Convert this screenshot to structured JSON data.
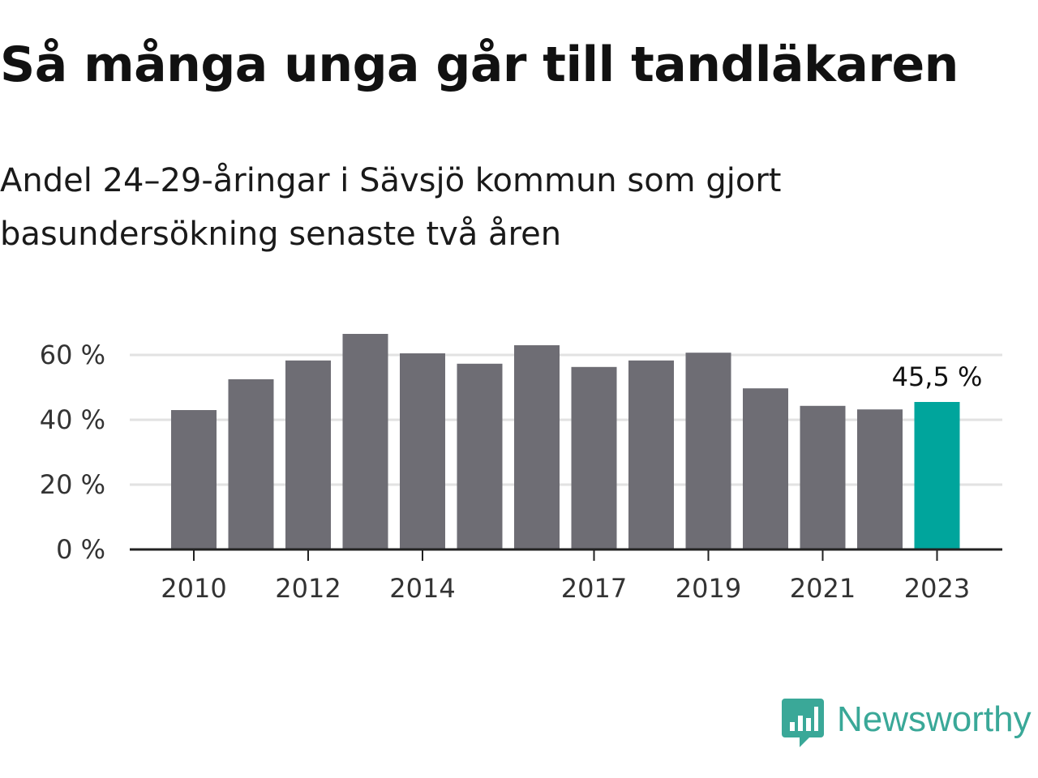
{
  "title": "Så många unga går till tandläkaren",
  "subtitle": "Andel 24–29-åringar i Sävsjö kommun som gjort basundersökning senaste två åren",
  "brand": {
    "name": "Newsworthy",
    "icon": "newsworthy-logo-icon",
    "color": "#3aa898"
  },
  "colors": {
    "bar": "#6e6d74",
    "highlight": "#00a59c",
    "grid": "#e2e2e2",
    "axis": "#222222"
  },
  "chart_data": {
    "type": "bar",
    "categories": [
      "2010",
      "2011",
      "2012",
      "2013",
      "2014",
      "2015",
      "2016",
      "2017",
      "2018",
      "2019",
      "2020",
      "2021",
      "2022",
      "2023"
    ],
    "values": [
      43.0,
      52.5,
      58.3,
      66.5,
      60.5,
      57.3,
      63.0,
      56.3,
      58.3,
      60.7,
      49.7,
      44.3,
      43.2,
      45.5
    ],
    "ylim": [
      0,
      70
    ],
    "y_ticks": [
      "0 %",
      "20 %",
      "40 %",
      "60 %"
    ],
    "y_tick_values": [
      0,
      20,
      40,
      60
    ],
    "x_tick_labels": [
      "2010",
      "2012",
      "2014",
      "2017",
      "2019",
      "2021",
      "2023"
    ],
    "highlight_index": 13,
    "data_labels": [
      {
        "index": 13,
        "text": "45,5 %"
      }
    ],
    "grid": true,
    "legend": "none",
    "xlabel": "",
    "ylabel": ""
  }
}
